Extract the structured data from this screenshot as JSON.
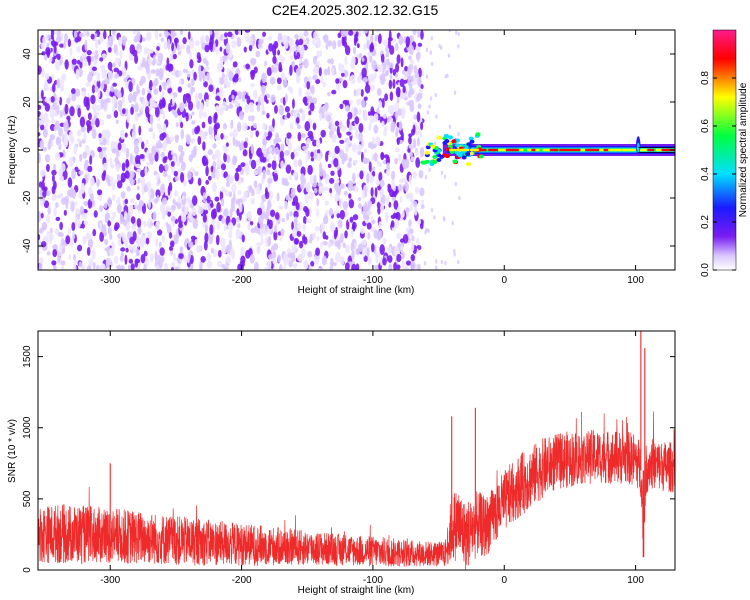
{
  "title": "C2E4.2025.302.12.32.G15",
  "colors": {
    "snr_line": "#ee2a2a",
    "spectrogram_scale": [
      "#ffffff",
      "#d9c6ff",
      "#7a1cf0",
      "#1a1aff",
      "#00e0ff",
      "#00ff40",
      "#ffff00",
      "#ff0000",
      "#ff1a8c"
    ]
  },
  "chart_data": [
    {
      "type": "heatmap",
      "name": "spectrogram",
      "xlabel": "Height of straight line (km)",
      "ylabel": "Frequency (Hz)",
      "xlim": [
        -355,
        130
      ],
      "ylim": [
        -50,
        50
      ],
      "xticks": [
        -300,
        -200,
        -100,
        0,
        100
      ],
      "yticks": [
        -40,
        -20,
        0,
        20,
        40
      ],
      "colorbar": {
        "label": "Normalized spectral amplitude",
        "range": [
          0,
          1
        ],
        "ticks": [
          0.0,
          0.2,
          0.4,
          0.6,
          0.8
        ]
      },
      "features": {
        "noise_region_x": [
          -355,
          -62
        ],
        "signal_start_x": -62,
        "signal_center_frequency": 0,
        "signal_peak_amplitude": 1.0,
        "signal_spike_x": 102
      }
    },
    {
      "type": "line",
      "name": "snr",
      "xlabel": "Height of straight line (km)",
      "ylabel": "SNR (10 * v/v)",
      "xlim": [
        -355,
        130
      ],
      "ylim": [
        0,
        1680
      ],
      "xticks": [
        -300,
        -200,
        -100,
        0,
        100
      ],
      "yticks": [
        0,
        500,
        1000,
        1500
      ],
      "series": [
        {
          "x": [
            -355,
            -340,
            -325,
            -310,
            -300,
            -280,
            -260,
            -240,
            -220,
            -200,
            -180,
            -160,
            -140,
            -120,
            -100,
            -80,
            -60,
            -45,
            -40,
            -35,
            -30,
            -25,
            -20,
            -15,
            -10,
            -5,
            0,
            10,
            20,
            30,
            40,
            50,
            60,
            70,
            80,
            90,
            100,
            104,
            106,
            108,
            110,
            115,
            120,
            130
          ],
          "mean": [
            250,
            255,
            250,
            245,
            240,
            230,
            215,
            200,
            190,
            180,
            170,
            160,
            150,
            140,
            130,
            120,
            115,
            110,
            300,
            330,
            240,
            280,
            330,
            300,
            350,
            420,
            480,
            580,
            650,
            720,
            760,
            780,
            790,
            800,
            795,
            790,
            780,
            700,
            300,
            700,
            750,
            740,
            730,
            720
          ],
          "spread": [
            200,
            210,
            210,
            200,
            200,
            190,
            180,
            170,
            160,
            150,
            140,
            130,
            120,
            110,
            110,
            100,
            90,
            90,
            250,
            260,
            250,
            240,
            230,
            220,
            210,
            220,
            220,
            220,
            220,
            210,
            200,
            200,
            190,
            190,
            190,
            190,
            190,
            190,
            190,
            190,
            180,
            180,
            180,
            180
          ]
        }
      ],
      "annotations": {
        "peaks": [
          {
            "x": -300,
            "y": 750
          },
          {
            "x": -40,
            "y": 1080
          },
          {
            "x": -22,
            "y": 1140
          },
          {
            "x": 104,
            "y": 1680
          },
          {
            "x": 107,
            "y": 1560
          }
        ],
        "dip": {
          "x": 106,
          "y": 90
        }
      }
    }
  ]
}
